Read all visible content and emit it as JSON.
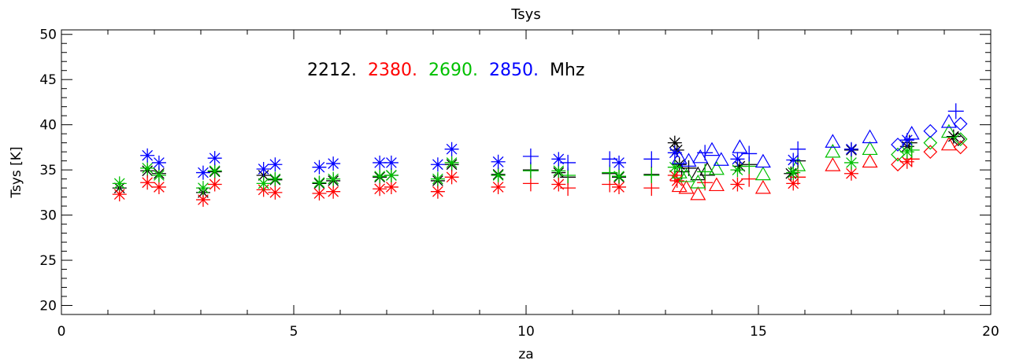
{
  "chart_data": {
    "type": "scatter",
    "title": "Tsys",
    "xlabel": "za",
    "ylabel": "Tsys [K]",
    "xlim": [
      0,
      20
    ],
    "ylim": [
      19,
      50.5
    ],
    "x_ticks": [
      0,
      5,
      10,
      15,
      20
    ],
    "y_ticks": [
      20,
      25,
      30,
      35,
      40,
      45,
      50
    ],
    "x_tick_labels": [
      "0",
      "5",
      "10",
      "15",
      "20"
    ],
    "y_tick_labels": [
      "20",
      "25",
      "30",
      "35",
      "40",
      "45",
      "50"
    ],
    "grid": false,
    "legend_placement": "top-left, inside plot",
    "legend": [
      {
        "label": "2212.",
        "color": "#000000"
      },
      {
        "label": "2380.",
        "color": "#ff0000"
      },
      {
        "label": "2690.",
        "color": "#00c000"
      },
      {
        "label": "2850.",
        "color": "#0000ff"
      },
      {
        "label": "Mhz",
        "color": "#000000"
      }
    ],
    "series": [
      {
        "color": "#000000",
        "points": [
          {
            "x": 1.25,
            "y": 33.0,
            "m": "asterisk"
          },
          {
            "x": 1.85,
            "y": 34.9,
            "m": "asterisk"
          },
          {
            "x": 2.1,
            "y": 34.6,
            "m": "asterisk"
          },
          {
            "x": 3.05,
            "y": 32.5,
            "m": "asterisk"
          },
          {
            "x": 3.3,
            "y": 34.8,
            "m": "asterisk"
          },
          {
            "x": 4.35,
            "y": 34.4,
            "m": "asterisk"
          },
          {
            "x": 4.6,
            "y": 33.9,
            "m": "asterisk"
          },
          {
            "x": 5.55,
            "y": 33.5,
            "m": "asterisk"
          },
          {
            "x": 5.85,
            "y": 33.8,
            "m": "asterisk"
          },
          {
            "x": 6.85,
            "y": 34.2,
            "m": "asterisk"
          },
          {
            "x": 7.1,
            "y": 34.4,
            "m": "asterisk"
          },
          {
            "x": 8.1,
            "y": 33.8,
            "m": "asterisk"
          },
          {
            "x": 8.4,
            "y": 35.6,
            "m": "asterisk"
          },
          {
            "x": 9.4,
            "y": 34.5,
            "m": "asterisk"
          },
          {
            "x": 10.1,
            "y": 35.0,
            "m": "plus"
          },
          {
            "x": 10.7,
            "y": 34.7,
            "m": "asterisk"
          },
          {
            "x": 10.9,
            "y": 34.2,
            "m": "plus"
          },
          {
            "x": 11.8,
            "y": 34.6,
            "m": "plus"
          },
          {
            "x": 12.0,
            "y": 34.2,
            "m": "asterisk"
          },
          {
            "x": 12.7,
            "y": 34.5,
            "m": "plus"
          },
          {
            "x": 13.2,
            "y": 38.0,
            "m": "asterisk"
          },
          {
            "x": 13.25,
            "y": 37.2,
            "m": "asterisk"
          },
          {
            "x": 13.3,
            "y": 35.6,
            "m": "asterisk"
          },
          {
            "x": 13.35,
            "y": 34.8,
            "m": "plus"
          },
          {
            "x": 13.5,
            "y": 35.2,
            "m": "plus"
          },
          {
            "x": 13.7,
            "y": 34.5,
            "m": "triangle"
          },
          {
            "x": 13.9,
            "y": 35.0,
            "m": "triangle"
          },
          {
            "x": 14.6,
            "y": 35.4,
            "m": "asterisk"
          },
          {
            "x": 14.8,
            "y": 35.6,
            "m": "plus"
          },
          {
            "x": 15.7,
            "y": 34.6,
            "m": "asterisk"
          },
          {
            "x": 15.85,
            "y": 36.0,
            "m": "plus"
          },
          {
            "x": 17.0,
            "y": 37.2,
            "m": "asterisk"
          },
          {
            "x": 18.2,
            "y": 37.6,
            "m": "asterisk"
          },
          {
            "x": 18.25,
            "y": 38.0,
            "m": "plus"
          },
          {
            "x": 19.2,
            "y": 38.7,
            "m": "asterisk"
          },
          {
            "x": 19.3,
            "y": 38.4,
            "m": "diamond"
          }
        ]
      },
      {
        "color": "#ff0000",
        "points": [
          {
            "x": 1.25,
            "y": 32.3,
            "m": "asterisk"
          },
          {
            "x": 1.85,
            "y": 33.6,
            "m": "asterisk"
          },
          {
            "x": 2.1,
            "y": 33.1,
            "m": "asterisk"
          },
          {
            "x": 3.05,
            "y": 31.7,
            "m": "asterisk"
          },
          {
            "x": 3.3,
            "y": 33.4,
            "m": "asterisk"
          },
          {
            "x": 4.35,
            "y": 32.8,
            "m": "asterisk"
          },
          {
            "x": 4.6,
            "y": 32.5,
            "m": "asterisk"
          },
          {
            "x": 5.55,
            "y": 32.4,
            "m": "asterisk"
          },
          {
            "x": 5.85,
            "y": 32.6,
            "m": "asterisk"
          },
          {
            "x": 6.85,
            "y": 32.9,
            "m": "asterisk"
          },
          {
            "x": 7.1,
            "y": 33.1,
            "m": "asterisk"
          },
          {
            "x": 8.1,
            "y": 32.6,
            "m": "asterisk"
          },
          {
            "x": 8.4,
            "y": 34.2,
            "m": "asterisk"
          },
          {
            "x": 9.4,
            "y": 33.1,
            "m": "asterisk"
          },
          {
            "x": 10.1,
            "y": 33.5,
            "m": "plus"
          },
          {
            "x": 10.7,
            "y": 33.4,
            "m": "asterisk"
          },
          {
            "x": 10.9,
            "y": 33.0,
            "m": "plus"
          },
          {
            "x": 11.8,
            "y": 33.4,
            "m": "plus"
          },
          {
            "x": 12.0,
            "y": 33.1,
            "m": "asterisk"
          },
          {
            "x": 12.7,
            "y": 33.0,
            "m": "plus"
          },
          {
            "x": 13.2,
            "y": 34.4,
            "m": "asterisk"
          },
          {
            "x": 13.25,
            "y": 33.8,
            "m": "asterisk"
          },
          {
            "x": 13.3,
            "y": 33.2,
            "m": "triangle"
          },
          {
            "x": 13.45,
            "y": 33.0,
            "m": "triangle"
          },
          {
            "x": 13.7,
            "y": 32.3,
            "m": "triangle"
          },
          {
            "x": 13.85,
            "y": 33.6,
            "m": "plus"
          },
          {
            "x": 14.1,
            "y": 33.3,
            "m": "triangle"
          },
          {
            "x": 14.55,
            "y": 33.4,
            "m": "asterisk"
          },
          {
            "x": 14.8,
            "y": 34.0,
            "m": "plus"
          },
          {
            "x": 15.1,
            "y": 33.0,
            "m": "triangle"
          },
          {
            "x": 15.75,
            "y": 33.5,
            "m": "asterisk"
          },
          {
            "x": 15.85,
            "y": 34.2,
            "m": "plus"
          },
          {
            "x": 16.6,
            "y": 35.5,
            "m": "triangle"
          },
          {
            "x": 17.0,
            "y": 34.6,
            "m": "asterisk"
          },
          {
            "x": 17.4,
            "y": 35.9,
            "m": "triangle"
          },
          {
            "x": 18.0,
            "y": 35.6,
            "m": "diamond"
          },
          {
            "x": 18.2,
            "y": 35.9,
            "m": "asterisk"
          },
          {
            "x": 18.3,
            "y": 36.2,
            "m": "plus"
          },
          {
            "x": 18.7,
            "y": 37.0,
            "m": "diamond"
          },
          {
            "x": 19.1,
            "y": 37.8,
            "m": "triangle"
          },
          {
            "x": 19.35,
            "y": 37.5,
            "m": "diamond"
          }
        ]
      },
      {
        "color": "#00c000",
        "points": [
          {
            "x": 1.25,
            "y": 33.5,
            "m": "asterisk"
          },
          {
            "x": 1.85,
            "y": 35.2,
            "m": "asterisk"
          },
          {
            "x": 2.1,
            "y": 34.4,
            "m": "asterisk"
          },
          {
            "x": 3.05,
            "y": 33.0,
            "m": "asterisk"
          },
          {
            "x": 3.3,
            "y": 34.9,
            "m": "asterisk"
          },
          {
            "x": 4.35,
            "y": 33.5,
            "m": "asterisk"
          },
          {
            "x": 4.6,
            "y": 34.0,
            "m": "asterisk"
          },
          {
            "x": 5.55,
            "y": 33.6,
            "m": "asterisk"
          },
          {
            "x": 5.85,
            "y": 34.0,
            "m": "asterisk"
          },
          {
            "x": 6.85,
            "y": 34.3,
            "m": "asterisk"
          },
          {
            "x": 7.1,
            "y": 34.4,
            "m": "asterisk"
          },
          {
            "x": 8.1,
            "y": 34.0,
            "m": "asterisk"
          },
          {
            "x": 8.4,
            "y": 35.8,
            "m": "asterisk"
          },
          {
            "x": 9.4,
            "y": 34.4,
            "m": "asterisk"
          },
          {
            "x": 10.1,
            "y": 34.9,
            "m": "plus"
          },
          {
            "x": 10.7,
            "y": 34.9,
            "m": "asterisk"
          },
          {
            "x": 10.9,
            "y": 34.4,
            "m": "plus"
          },
          {
            "x": 11.8,
            "y": 34.7,
            "m": "plus"
          },
          {
            "x": 12.0,
            "y": 34.3,
            "m": "asterisk"
          },
          {
            "x": 12.7,
            "y": 34.4,
            "m": "plus"
          },
          {
            "x": 13.2,
            "y": 35.3,
            "m": "asterisk"
          },
          {
            "x": 13.3,
            "y": 34.7,
            "m": "triangle"
          },
          {
            "x": 13.45,
            "y": 34.3,
            "m": "triangle"
          },
          {
            "x": 13.7,
            "y": 33.6,
            "m": "triangle"
          },
          {
            "x": 13.85,
            "y": 34.8,
            "m": "plus"
          },
          {
            "x": 14.1,
            "y": 35.1,
            "m": "triangle"
          },
          {
            "x": 14.55,
            "y": 35.0,
            "m": "asterisk"
          },
          {
            "x": 14.8,
            "y": 35.4,
            "m": "plus"
          },
          {
            "x": 15.1,
            "y": 34.5,
            "m": "triangle"
          },
          {
            "x": 15.75,
            "y": 34.7,
            "m": "asterisk"
          },
          {
            "x": 15.85,
            "y": 35.5,
            "m": "triangle"
          },
          {
            "x": 16.6,
            "y": 37.0,
            "m": "triangle"
          },
          {
            "x": 17.0,
            "y": 35.8,
            "m": "asterisk"
          },
          {
            "x": 17.4,
            "y": 37.3,
            "m": "triangle"
          },
          {
            "x": 18.0,
            "y": 36.7,
            "m": "diamond"
          },
          {
            "x": 18.2,
            "y": 37.0,
            "m": "asterisk"
          },
          {
            "x": 18.3,
            "y": 37.2,
            "m": "plus"
          },
          {
            "x": 18.7,
            "y": 38.0,
            "m": "diamond"
          },
          {
            "x": 19.1,
            "y": 39.2,
            "m": "triangle"
          },
          {
            "x": 19.35,
            "y": 38.4,
            "m": "diamond"
          }
        ]
      },
      {
        "color": "#0000ff",
        "points": [
          {
            "x": 1.85,
            "y": 36.6,
            "m": "asterisk"
          },
          {
            "x": 2.1,
            "y": 35.8,
            "m": "asterisk"
          },
          {
            "x": 3.05,
            "y": 34.7,
            "m": "asterisk"
          },
          {
            "x": 3.3,
            "y": 36.3,
            "m": "asterisk"
          },
          {
            "x": 4.35,
            "y": 35.1,
            "m": "asterisk"
          },
          {
            "x": 4.6,
            "y": 35.6,
            "m": "asterisk"
          },
          {
            "x": 5.55,
            "y": 35.3,
            "m": "asterisk"
          },
          {
            "x": 5.85,
            "y": 35.7,
            "m": "asterisk"
          },
          {
            "x": 6.85,
            "y": 35.8,
            "m": "asterisk"
          },
          {
            "x": 7.1,
            "y": 35.8,
            "m": "asterisk"
          },
          {
            "x": 8.1,
            "y": 35.6,
            "m": "asterisk"
          },
          {
            "x": 8.4,
            "y": 37.3,
            "m": "asterisk"
          },
          {
            "x": 9.4,
            "y": 35.9,
            "m": "asterisk"
          },
          {
            "x": 10.1,
            "y": 36.5,
            "m": "plus"
          },
          {
            "x": 10.7,
            "y": 36.2,
            "m": "asterisk"
          },
          {
            "x": 10.9,
            "y": 35.8,
            "m": "plus"
          },
          {
            "x": 11.8,
            "y": 36.2,
            "m": "plus"
          },
          {
            "x": 12.0,
            "y": 35.8,
            "m": "asterisk"
          },
          {
            "x": 12.7,
            "y": 36.2,
            "m": "plus"
          },
          {
            "x": 13.2,
            "y": 36.9,
            "m": "asterisk"
          },
          {
            "x": 13.3,
            "y": 36.3,
            "m": "triangle"
          },
          {
            "x": 13.5,
            "y": 36.0,
            "m": "triangle"
          },
          {
            "x": 13.75,
            "y": 36.4,
            "m": "triangle"
          },
          {
            "x": 13.85,
            "y": 36.9,
            "m": "plus"
          },
          {
            "x": 14.0,
            "y": 37.2,
            "m": "triangle"
          },
          {
            "x": 14.2,
            "y": 36.1,
            "m": "triangle"
          },
          {
            "x": 14.55,
            "y": 36.2,
            "m": "asterisk"
          },
          {
            "x": 14.6,
            "y": 37.5,
            "m": "triangle"
          },
          {
            "x": 14.8,
            "y": 36.8,
            "m": "plus"
          },
          {
            "x": 15.1,
            "y": 35.9,
            "m": "triangle"
          },
          {
            "x": 15.75,
            "y": 36.1,
            "m": "asterisk"
          },
          {
            "x": 15.85,
            "y": 37.3,
            "m": "plus"
          },
          {
            "x": 16.6,
            "y": 38.1,
            "m": "triangle"
          },
          {
            "x": 17.0,
            "y": 37.3,
            "m": "asterisk"
          },
          {
            "x": 17.4,
            "y": 38.6,
            "m": "triangle"
          },
          {
            "x": 18.0,
            "y": 37.8,
            "m": "diamond"
          },
          {
            "x": 18.2,
            "y": 38.3,
            "m": "asterisk"
          },
          {
            "x": 18.3,
            "y": 39.0,
            "m": "triangle"
          },
          {
            "x": 18.7,
            "y": 39.3,
            "m": "diamond"
          },
          {
            "x": 19.1,
            "y": 40.3,
            "m": "triangle"
          },
          {
            "x": 19.25,
            "y": 41.5,
            "m": "plus"
          },
          {
            "x": 19.35,
            "y": 40.1,
            "m": "diamond"
          }
        ]
      }
    ]
  }
}
